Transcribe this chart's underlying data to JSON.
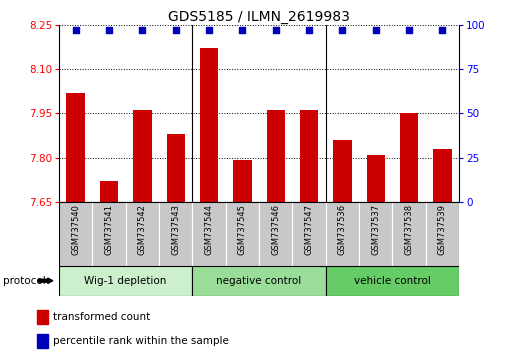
{
  "title": "GDS5185 / ILMN_2619983",
  "samples": [
    "GSM737540",
    "GSM737541",
    "GSM737542",
    "GSM737543",
    "GSM737544",
    "GSM737545",
    "GSM737546",
    "GSM737547",
    "GSM737536",
    "GSM737537",
    "GSM737538",
    "GSM737539"
  ],
  "red_values": [
    8.02,
    7.72,
    7.96,
    7.88,
    8.17,
    7.79,
    7.96,
    7.96,
    7.86,
    7.81,
    7.95,
    7.83
  ],
  "blue_values": [
    97,
    97,
    97,
    97,
    97,
    97,
    97,
    97,
    97,
    97,
    97,
    97
  ],
  "ylim_left": [
    7.65,
    8.25
  ],
  "ylim_right": [
    0,
    100
  ],
  "yticks_left": [
    7.65,
    7.8,
    7.95,
    8.1,
    8.25
  ],
  "yticks_right": [
    0,
    25,
    50,
    75,
    100
  ],
  "groups": [
    {
      "label": "Wig-1 depletion",
      "start": 0,
      "end": 4,
      "color": "#ccf0cc"
    },
    {
      "label": "negative control",
      "start": 4,
      "end": 8,
      "color": "#99dd99"
    },
    {
      "label": "vehicle control",
      "start": 8,
      "end": 12,
      "color": "#66cc66"
    }
  ],
  "bar_color": "#cc0000",
  "dot_color": "#0000bb",
  "baseline": 7.65,
  "legend_red_label": "transformed count",
  "legend_blue_label": "percentile rank within the sample",
  "protocol_label": "protocol"
}
